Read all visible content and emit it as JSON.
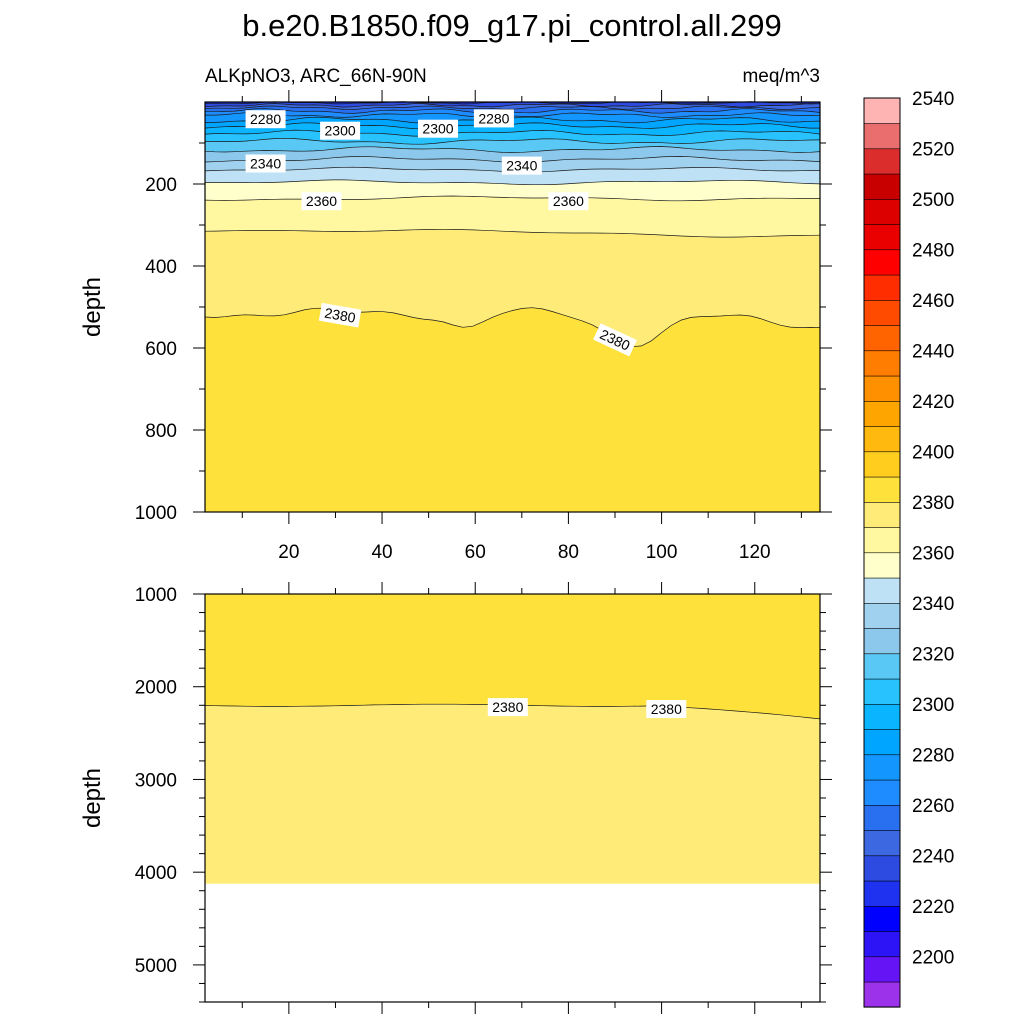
{
  "chart_data": {
    "type": "contour",
    "title": "b.e20.B1850.f09_g17.pi_control.all.299",
    "left_subtitle": "ALKpNO3, ARC_66N-90N",
    "right_subtitle": "meq/m^3",
    "x": {
      "range": [
        2,
        134
      ],
      "tick_labels": [
        "20",
        "40",
        "60",
        "80",
        "100",
        "120"
      ],
      "tick_values": [
        20,
        40,
        60,
        80,
        100,
        120
      ]
    },
    "top_panel": {
      "ylabel": "depth",
      "ylim": [
        0,
        1000
      ],
      "y_tick_labels": [
        "200",
        "400",
        "600",
        "800",
        "1000"
      ],
      "y_tick_values": [
        200,
        400,
        600,
        800,
        1000
      ],
      "contour_labels": [
        {
          "text": "2280",
          "x": 15,
          "depth": 42
        },
        {
          "text": "2300",
          "x": 31,
          "depth": 70
        },
        {
          "text": "2300",
          "x": 52,
          "depth": 65
        },
        {
          "text": "2280",
          "x": 64,
          "depth": 40
        },
        {
          "text": "2340",
          "x": 15,
          "depth": 150
        },
        {
          "text": "2340",
          "x": 70,
          "depth": 155
        },
        {
          "text": "2360",
          "x": 27,
          "depth": 242
        },
        {
          "text": "2360",
          "x": 80,
          "depth": 242
        },
        {
          "text": "2380",
          "x": 31,
          "depth": 520
        },
        {
          "text": "2380",
          "x": 90,
          "depth": 580
        }
      ]
    },
    "bottom_panel": {
      "ylabel": "depth",
      "ylim": [
        1000,
        5400
      ],
      "y_tick_labels": [
        "1000",
        "2000",
        "3000",
        "4000",
        "5000"
      ],
      "y_tick_values": [
        1000,
        2000,
        3000,
        4000,
        5000
      ],
      "ocean_floor_depth": 4125,
      "contour_labels": [
        {
          "text": "2380",
          "x": 67,
          "depth": 2220
        },
        {
          "text": "2380",
          "x": 101,
          "depth": 2240
        }
      ]
    },
    "colorbar": {
      "levels_start": 2190,
      "level_step": 10,
      "tick_labels": [
        "2200",
        "2220",
        "2240",
        "2260",
        "2280",
        "2300",
        "2320",
        "2340",
        "2360",
        "2380",
        "2400",
        "2420",
        "2440",
        "2460",
        "2480",
        "2500",
        "2520",
        "2540"
      ],
      "colors": [
        "#9d32eb",
        "#6514f5",
        "#2d14f7",
        "#0000ff",
        "#1e32f0",
        "#2d4be1",
        "#3c69e1",
        "#2870f0",
        "#1e8cff",
        "#1496ff",
        "#00a5ff",
        "#0ab4ff",
        "#28c3ff",
        "#5ac8f5",
        "#8cc8eb",
        "#a0d2f0",
        "#bee1f5",
        "#ffffcb",
        "#fff8a0",
        "#ffeb78",
        "#ffe13c",
        "#ffcd1e",
        "#ffb90f",
        "#ffa500",
        "#ff9100",
        "#ff7d00",
        "#ff6400",
        "#ff4b00",
        "#ff2d00",
        "#ff0000",
        "#eb0000",
        "#dc0000",
        "#c80000",
        "#dc2d2d",
        "#eb6e6e",
        "#ffb4b4"
      ]
    }
  }
}
